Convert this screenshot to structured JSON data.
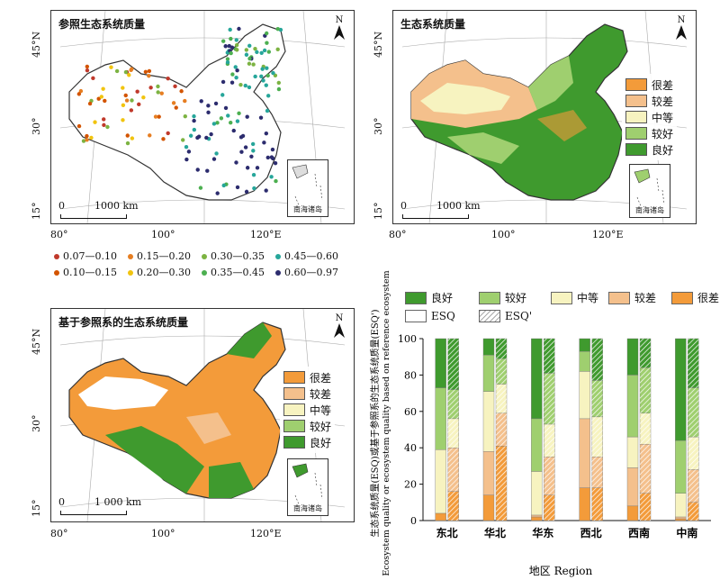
{
  "maps": {
    "ref": {
      "title": "参照生态系统质量"
    },
    "esq": {
      "title": "生态系统质量"
    },
    "based": {
      "title": "基于参照系的生态系统质量"
    }
  },
  "north_letter": "N",
  "lat_labels": [
    "45°N",
    "30°",
    "15°"
  ],
  "lon_labels": [
    "80°",
    "100°",
    "120°E"
  ],
  "scale": {
    "zero": "0",
    "label_a": "1000 km",
    "label_b": "1 000 km"
  },
  "inset_label": "南海诸岛",
  "class_colors": {
    "very_poor": "#f39b3a",
    "poor": "#f4c08c",
    "medium": "#f7f3c0",
    "good": "#9fcf6f",
    "excellent": "#3f9a2e"
  },
  "legend_esq": [
    "很差",
    "较差",
    "中等",
    "较好",
    "良好"
  ],
  "legend_based": [
    "很差",
    "较差",
    "中等",
    "较好",
    "良好"
  ],
  "dot_legend": [
    {
      "label": "0.07—0.10",
      "color": "#c0392b"
    },
    {
      "label": "0.15—0.20",
      "color": "#e67e22"
    },
    {
      "label": "0.30—0.35",
      "color": "#7cb342"
    },
    {
      "label": "0.45—0.60",
      "color": "#26a69a"
    },
    {
      "label": "0.10—0.15",
      "color": "#d35400"
    },
    {
      "label": "0.20—0.30",
      "color": "#f1c40f"
    },
    {
      "label": "0.35—0.45",
      "color": "#4caf50"
    },
    {
      "label": "0.60—0.97",
      "color": "#2c2c6e"
    }
  ],
  "chart_data": {
    "type": "bar",
    "stacked": true,
    "xlabel": "地区 Region",
    "ylabel": "生态系统质量(ESQ)或基于参照系的生态系统质量(ESQ')",
    "ylabel_en": "Ecosystem quality or ecosystem quality based on reference ecosystem",
    "ylim": [
      0,
      100
    ],
    "yticks": [
      0,
      20,
      40,
      60,
      80,
      100
    ],
    "categories": [
      "东北",
      "华北",
      "华东",
      "西北",
      "西南",
      "中南"
    ],
    "legend": [
      "良好",
      "较好",
      "中等",
      "较差",
      "很差",
      "ESQ",
      "ESQ'"
    ],
    "stack_order": [
      "很差",
      "较差",
      "中等",
      "较好",
      "良好"
    ],
    "ESQ": [
      [
        4,
        0,
        35,
        34,
        27
      ],
      [
        14,
        24,
        33,
        20,
        9
      ],
      [
        2,
        1,
        24,
        29,
        44
      ],
      [
        18,
        38,
        26,
        11,
        7
      ],
      [
        8,
        21,
        17,
        34,
        20
      ],
      [
        1,
        1,
        13,
        29,
        56
      ]
    ],
    "ESQ_prime": [
      [
        16,
        24,
        16,
        16,
        28
      ],
      [
        41,
        18,
        16,
        14,
        11
      ],
      [
        14,
        21,
        18,
        28,
        19
      ],
      [
        18,
        17,
        22,
        20,
        23
      ],
      [
        15,
        27,
        17,
        25,
        16
      ],
      [
        10,
        18,
        18,
        27,
        27
      ]
    ]
  }
}
